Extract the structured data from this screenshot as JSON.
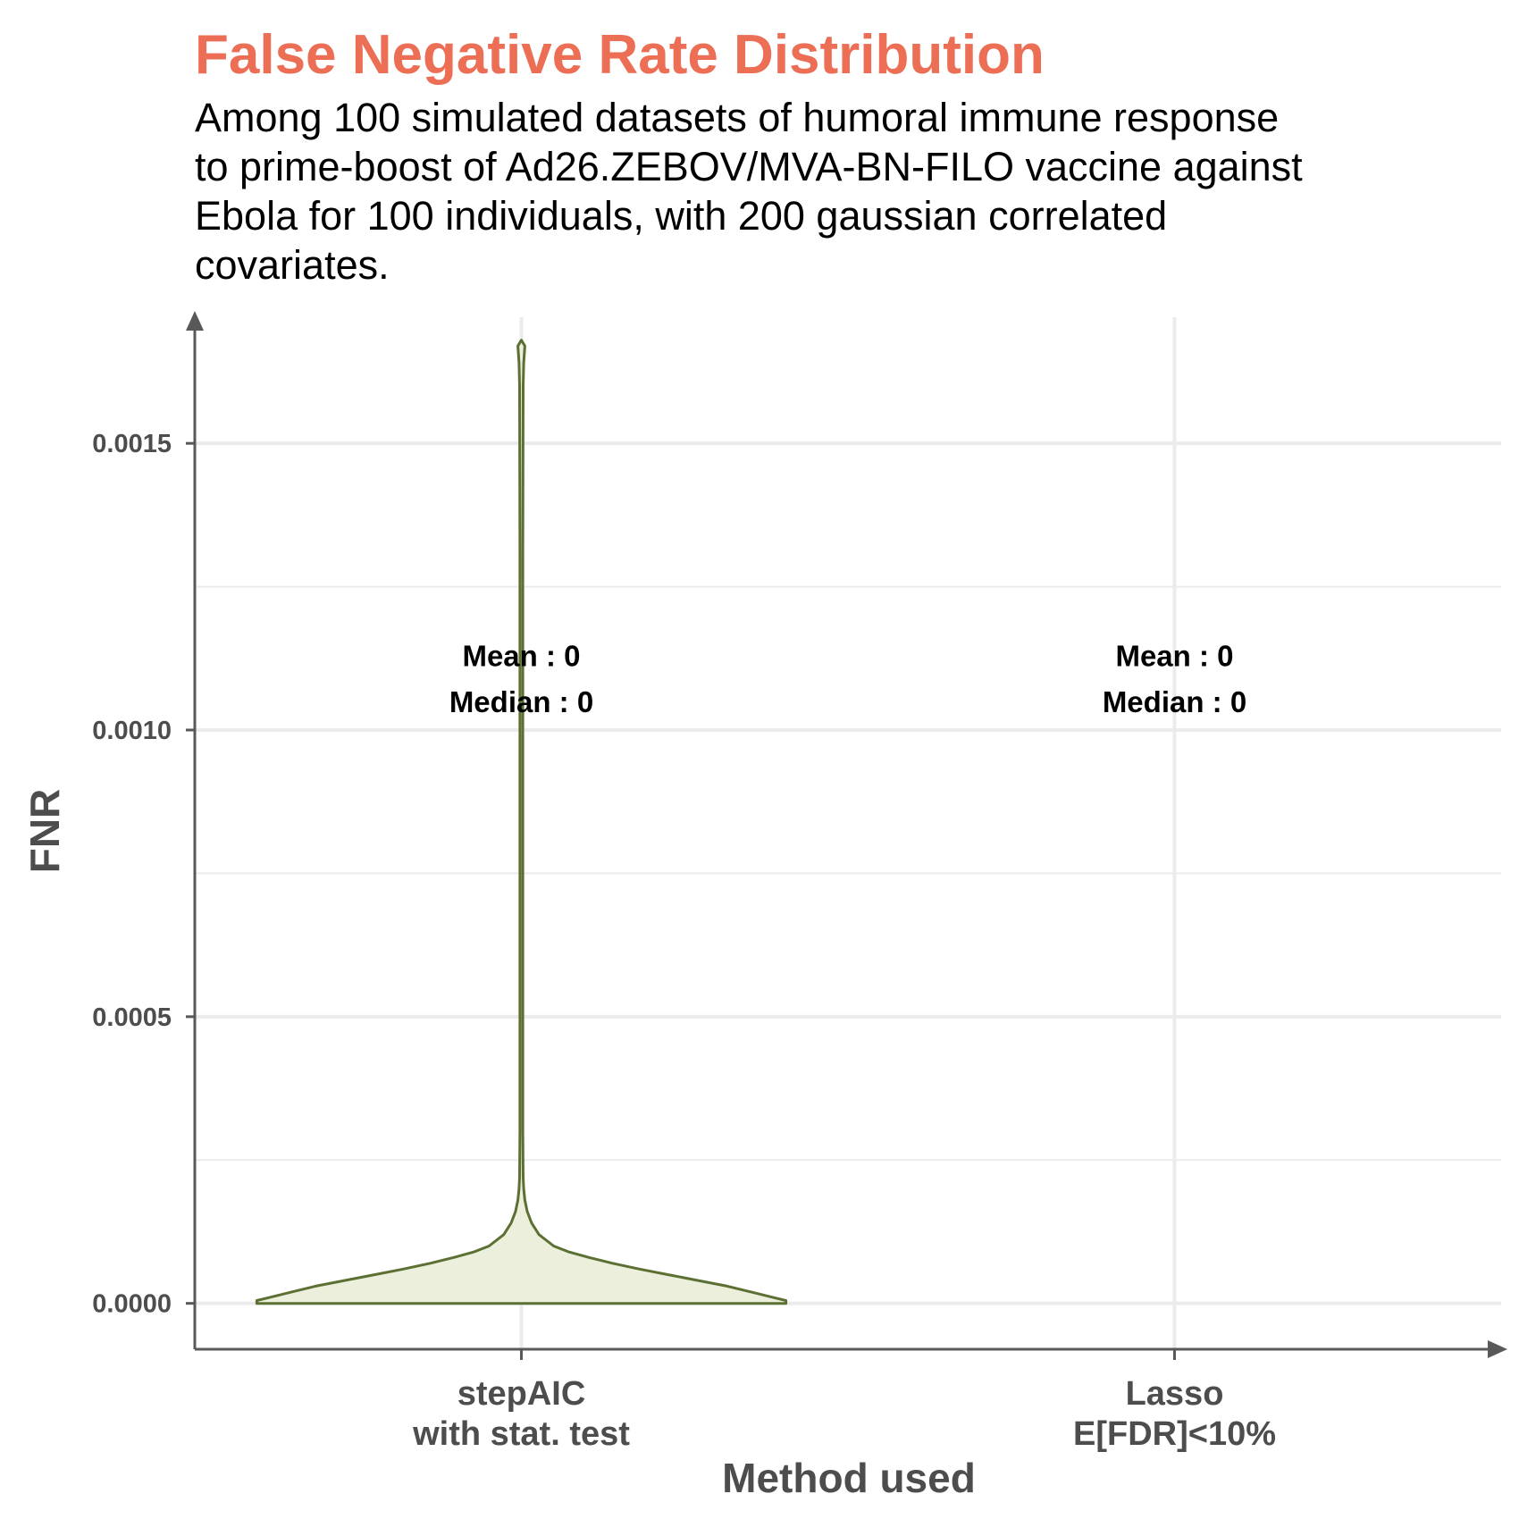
{
  "chart_data": {
    "type": "violin",
    "title": "False Negative Rate Distribution",
    "subtitle_lines": [
      "Among 100 simulated datasets of humoral immune response",
      "to prime-boost of Ad26.ZEBOV/MVA-BN-FILO vaccine against",
      "Ebola for 100 individuals, with 200 gaussian correlated",
      "covariates."
    ],
    "xlabel": "Method used",
    "ylabel": "FNR",
    "ylim": [
      -8e-05,
      0.00172
    ],
    "y_ticks": [
      0,
      0.0005,
      0.001,
      0.0015
    ],
    "y_tick_labels": [
      "0.0000",
      "0.0005",
      "0.0010",
      "0.0015"
    ],
    "grid": true,
    "categories": [
      {
        "label_lines": [
          "stepAIC",
          "with stat. test"
        ],
        "mean_label": "Mean : 0",
        "median_label": "Median : 0"
      },
      {
        "label_lines": [
          "Lasso",
          "E[FDR]<10%"
        ],
        "mean_label": "Mean : 0",
        "median_label": "Median : 0"
      }
    ],
    "violin": {
      "category_index": 0,
      "y_min": 0,
      "y_max": 0.00168,
      "profile": [
        [
          0.0,
          0.9
        ],
        [
          5e-06,
          0.9
        ],
        [
          1e-05,
          0.86
        ],
        [
          2e-05,
          0.78
        ],
        [
          3e-05,
          0.7
        ],
        [
          4e-05,
          0.6
        ],
        [
          5e-05,
          0.5
        ],
        [
          6e-05,
          0.4
        ],
        [
          7e-05,
          0.31
        ],
        [
          8e-05,
          0.23
        ],
        [
          9e-05,
          0.16
        ],
        [
          0.0001,
          0.11
        ],
        [
          0.00012,
          0.06
        ],
        [
          0.00014,
          0.035
        ],
        [
          0.00016,
          0.02
        ],
        [
          0.00018,
          0.012
        ],
        [
          0.0002,
          0.008
        ],
        [
          0.00022,
          0.006
        ],
        [
          0.0003,
          0.005
        ],
        [
          0.0008,
          0.005
        ],
        [
          0.0013,
          0.005
        ],
        [
          0.0016,
          0.006
        ],
        [
          0.00164,
          0.008
        ],
        [
          0.00167,
          0.012
        ],
        [
          0.00168,
          0.0
        ]
      ],
      "fill": "#ECEFDC",
      "stroke": "#5C7033"
    },
    "colors": {
      "title": "#EB6E55",
      "axis": "#595959",
      "grid": "#EBEBEB",
      "text": "#4d4d4d"
    }
  }
}
